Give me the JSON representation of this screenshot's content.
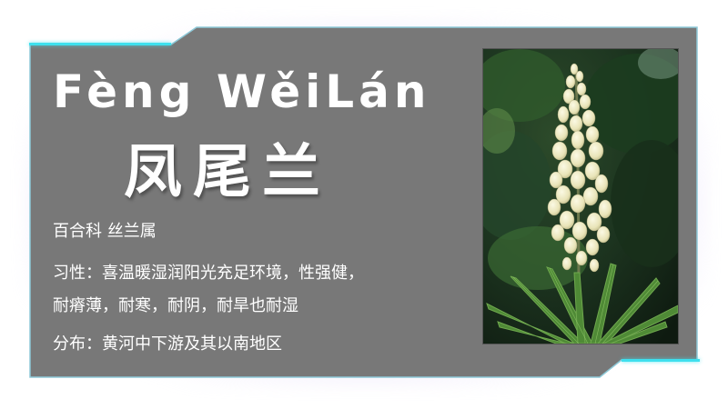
{
  "card": {
    "pinyin": "Fèng WěiLán",
    "hanzi": "凤尾兰",
    "family": "百合科 丝兰属",
    "habit_line1": "习性：喜温暖湿润阳光充足环境，性强健，",
    "habit_line2": "耐瘠薄，耐寒，耐阴，耐旱也耐湿",
    "distribution": "分布：黄河中下游及其以南地区"
  },
  "colors": {
    "panel": "#787878",
    "panel_border": "#8ec9d8",
    "accent": "#3ee0ee",
    "text": "#ffffff"
  },
  "photo": {
    "subject": "yucca-flower-spike-photo"
  }
}
